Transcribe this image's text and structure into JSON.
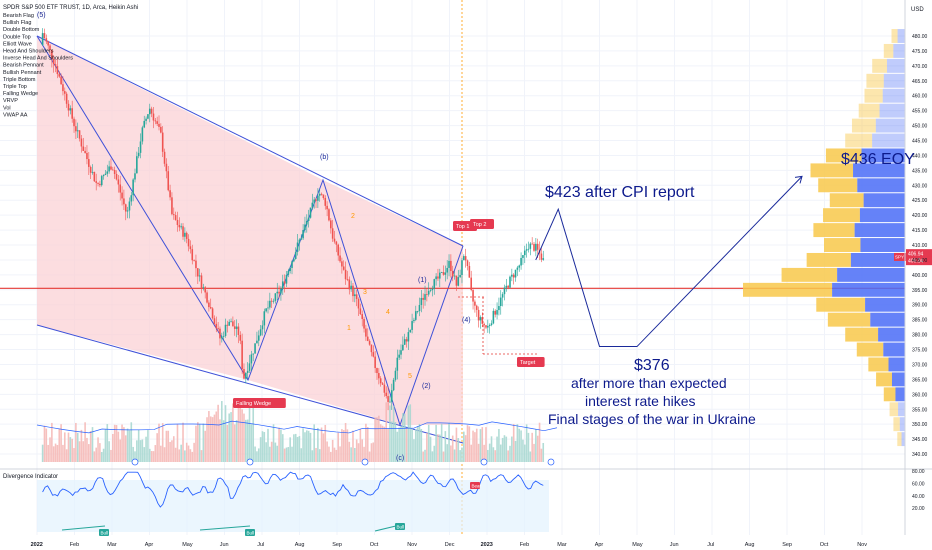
{
  "chart_data": {
    "type": "candlestick",
    "title": "SPDR S&P 500 ETF TRUST, 1D, Arca, Heikin Ashi",
    "title_suffix": "(5)",
    "currency": "USD",
    "indicators": [
      "Bearish Flag",
      "Bullish Flag",
      "Double Bottom",
      "Double Top",
      "Elliott Wave",
      "Head And Shoulders",
      "Inverse Head And Shoulders",
      "Bearish Pennant",
      "Bullish Pennant",
      "Triple Bottom",
      "Triple Top",
      "Falling Wedge",
      "VRVP",
      "Vol",
      "VWAP AA"
    ],
    "y_axis": {
      "min": 340,
      "max": 485,
      "ticks": [
        340,
        345,
        350,
        355,
        360,
        365,
        370,
        375,
        380,
        385,
        390,
        395,
        400,
        405,
        410,
        415,
        420,
        425,
        430,
        435,
        440,
        445,
        450,
        455,
        460,
        465,
        470,
        475,
        480
      ],
      "tick_labels": [
        "340.00",
        "345.00",
        "350.00",
        "355.00",
        "360.00",
        "365.00",
        "370.00",
        "375.00",
        "380.00",
        "385.00",
        "390.00",
        "395.00",
        "400.00",
        "405.00",
        "410.00",
        "415.00",
        "420.00",
        "425.00",
        "430.00",
        "435.00",
        "440.00",
        "445.00",
        "450.00",
        "455.00",
        "460.00",
        "465.00",
        "470.00",
        "475.00",
        "480.00"
      ]
    },
    "x_axis": {
      "labels": [
        "2022",
        "Feb",
        "Mar",
        "Apr",
        "May",
        "Jun",
        "Jul",
        "Aug",
        "Sep",
        "Oct",
        "Nov",
        "Dec",
        "2023",
        "Feb",
        "Mar",
        "Apr",
        "May",
        "Jun",
        "Jul",
        "Aug",
        "Sep",
        "Oct",
        "Nov"
      ],
      "months": [
        0,
        1,
        2,
        3,
        4,
        5,
        6,
        7,
        8,
        9,
        10,
        11,
        12,
        13,
        14,
        15,
        16,
        17,
        18,
        19,
        20,
        21,
        22
      ]
    },
    "price_path": [
      [
        0,
        477
      ],
      [
        0.15,
        481
      ],
      [
        0.5,
        470
      ],
      [
        1.0,
        450
      ],
      [
        1.3,
        440
      ],
      [
        1.6,
        430
      ],
      [
        2.0,
        437
      ],
      [
        2.4,
        420
      ],
      [
        2.8,
        448
      ],
      [
        3.0,
        456
      ],
      [
        3.3,
        447
      ],
      [
        3.6,
        420
      ],
      [
        4.0,
        412
      ],
      [
        4.3,
        400
      ],
      [
        4.6,
        390
      ],
      [
        4.9,
        378
      ],
      [
        5.1,
        385
      ],
      [
        5.4,
        380
      ],
      [
        5.5,
        365
      ],
      [
        5.8,
        376
      ],
      [
        6.1,
        388
      ],
      [
        6.5,
        395
      ],
      [
        6.8,
        405
      ],
      [
        7.2,
        418
      ],
      [
        7.5,
        428
      ],
      [
        7.7,
        424
      ],
      [
        7.9,
        412
      ],
      [
        8.2,
        400
      ],
      [
        8.5,
        392
      ],
      [
        8.8,
        378
      ],
      [
        9.0,
        370
      ],
      [
        9.3,
        360
      ],
      [
        9.4,
        356
      ],
      [
        9.6,
        372
      ],
      [
        9.9,
        380
      ],
      [
        10.2,
        390
      ],
      [
        10.4,
        395
      ],
      [
        10.8,
        400
      ],
      [
        11.0,
        404
      ],
      [
        11.2,
        396
      ],
      [
        11.4,
        408
      ],
      [
        11.6,
        392
      ],
      [
        11.8,
        385
      ],
      [
        12.0,
        382
      ],
      [
        12.3,
        390
      ],
      [
        12.6,
        398
      ],
      [
        12.9,
        404
      ],
      [
        13.1,
        410
      ],
      [
        13.3,
        409
      ],
      [
        13.5,
        405
      ]
    ],
    "volume_profile": {
      "poc_price": 395.5,
      "bins": [
        [
          345,
          8
        ],
        [
          350,
          12
        ],
        [
          355,
          16
        ],
        [
          360,
          22
        ],
        [
          365,
          30
        ],
        [
          370,
          38
        ],
        [
          375,
          50
        ],
        [
          380,
          62
        ],
        [
          385,
          80
        ],
        [
          390,
          92
        ],
        [
          395,
          168
        ],
        [
          400,
          128
        ],
        [
          405,
          102
        ],
        [
          410,
          84
        ],
        [
          415,
          95
        ],
        [
          420,
          85
        ],
        [
          425,
          78
        ],
        [
          430,
          90
        ],
        [
          435,
          98
        ],
        [
          440,
          82
        ],
        [
          445,
          62
        ],
        [
          450,
          55
        ],
        [
          455,
          48
        ],
        [
          460,
          42
        ],
        [
          465,
          40
        ],
        [
          470,
          34
        ],
        [
          475,
          22
        ],
        [
          480,
          14
        ]
      ]
    },
    "price_labels": {
      "last": "406.04",
      "ticker": "SPY",
      "vwap": "406.94"
    },
    "wave_labels": [
      "(b)",
      "(1)",
      "(4)",
      "(2)",
      "(c)",
      "1",
      "2",
      "3",
      "4",
      "5"
    ],
    "pattern_labels": [
      "Falling Wedge",
      "Top 1",
      "Top 2",
      "Target"
    ],
    "divergence": {
      "name": "Divergence Indicator",
      "ticks": [
        "80.00",
        "60.00",
        "40.00",
        "20.00"
      ],
      "labels": [
        "Bull",
        "Bull",
        "Bull",
        "Bear"
      ]
    },
    "annotations": {
      "cpi": "$423 after CPI report",
      "eoy": "$436 EOY",
      "low_price": "$376",
      "low_1": "after more than expected",
      "low_2": "interest rate hikes",
      "low_3": "Final stages of the war in Ukraine"
    },
    "projection": [
      [
        13.3,
        405
      ],
      [
        13.9,
        422
      ],
      [
        15.0,
        376
      ],
      [
        16.0,
        376
      ],
      [
        20.4,
        433
      ]
    ],
    "grid": true,
    "legend_position": "top-left"
  }
}
